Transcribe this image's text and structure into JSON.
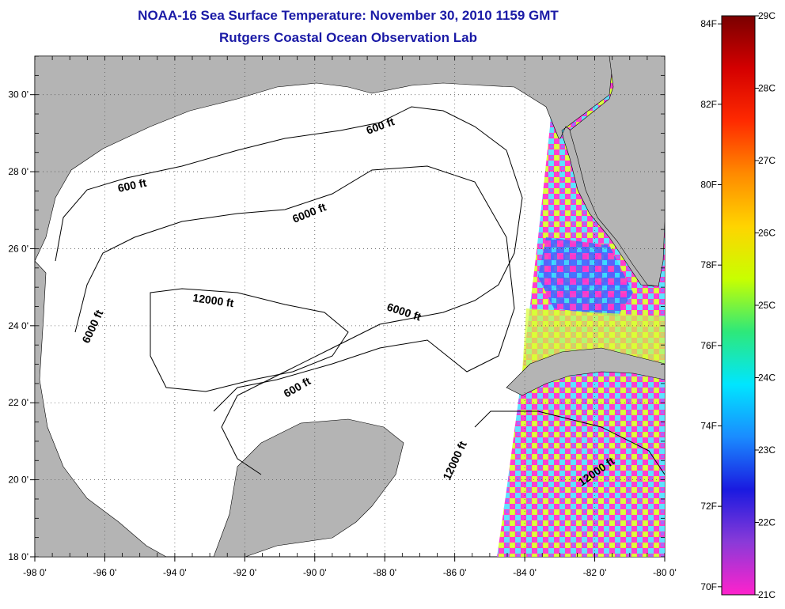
{
  "header": {
    "title": "NOAA-16 Sea Surface Temperature:  November 30, 2010 1159 GMT",
    "subtitle": "Rutgers Coastal Ocean Observation Lab"
  },
  "map": {
    "lon_range": [
      -98,
      -80
    ],
    "lat_range": [
      18,
      31
    ],
    "lon_ticks": [
      "-98 0'",
      "-96 0'",
      "-94 0'",
      "-92 0'",
      "-90 0'",
      "-88 0'",
      "-86 0'",
      "-84 0'",
      "-82 0'",
      "-80 0'"
    ],
    "lat_ticks": [
      "18 0'",
      "20 0'",
      "22 0'",
      "24 0'",
      "26 0'",
      "28 0'",
      "30 0'"
    ],
    "grid": "dotted",
    "land_color": "#b4b4b4",
    "no_data_color": "#ffffff",
    "contour_labels": [
      {
        "text": "600 ft"
      },
      {
        "text": "600 ft"
      },
      {
        "text": "600 ft"
      },
      {
        "text": "6000 ft"
      },
      {
        "text": "6000 ft"
      },
      {
        "text": "6000 ft"
      },
      {
        "text": "12000 ft"
      },
      {
        "text": "12000 ft"
      },
      {
        "text": "12000 ft"
      }
    ]
  },
  "colorbar": {
    "celsius_labels": [
      "29C",
      "28C",
      "27C",
      "26C",
      "25C",
      "24C",
      "23C",
      "22C",
      "21C"
    ],
    "fahrenheit_labels": [
      "84F",
      "82F",
      "80F",
      "78F",
      "76F",
      "74F",
      "72F",
      "70F"
    ],
    "c_range": [
      21,
      29
    ],
    "colors": [
      "#ff22cc",
      "#8a3ad8",
      "#1a1ae0",
      "#1a8cff",
      "#00e6ff",
      "#2ee87a",
      "#c8ff00",
      "#ffd400",
      "#ff8a00",
      "#ff2a00",
      "#d40000",
      "#7a0000"
    ]
  }
}
